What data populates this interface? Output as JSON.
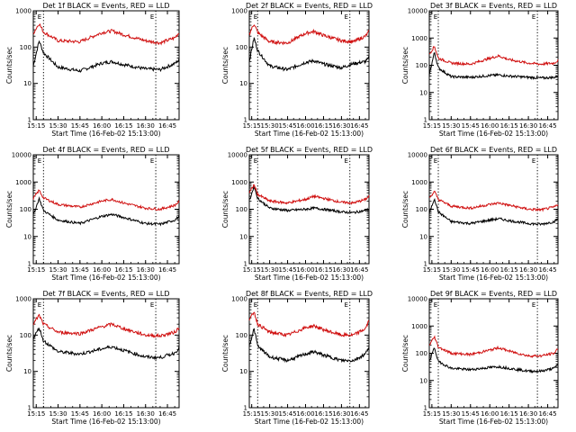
{
  "figure": {
    "start_time_label": "Start Time (16-Feb-02 15:13:00)",
    "ylabel": "Counts/sec",
    "x_tick_labels": [
      "15:15",
      "15:30",
      "15:45",
      "16:00",
      "16:15",
      "16:30",
      "16:45"
    ],
    "y_tick_labels": [
      "1",
      "10",
      "100",
      "1000",
      "10000"
    ]
  },
  "chart_data": [
    {
      "type": "line",
      "title": "Det 1f BLACK = Events, RED = LLD",
      "xlabel": "Start Time (16-Feb-02 15:13:00)",
      "ylabel": "Counts/sec",
      "xlim": [
        "15:13",
        "16:53"
      ],
      "ylim": [
        1,
        1000
      ],
      "yscale": "log",
      "x_tick_labels": [
        "15:15",
        "15:30",
        "15:45",
        "16:00",
        "16:15",
        "16:30",
        "16:45"
      ],
      "y_tick_labels": [
        "1",
        "10",
        "100",
        "1000"
      ],
      "dotted_vlines": [
        "15:20",
        "16:37"
      ],
      "marker_labels": [
        "E",
        "E"
      ],
      "x": [
        "15:13",
        "15:17",
        "15:20",
        "15:30",
        "15:45",
        "16:00",
        "16:07",
        "16:15",
        "16:30",
        "16:40",
        "16:50",
        "16:53"
      ],
      "series": [
        {
          "color": "#000000",
          "values": [
            30,
            150,
            70,
            28,
            22,
            36,
            40,
            33,
            25,
            24,
            35,
            45
          ]
        },
        {
          "color": "#d01010",
          "values": [
            240,
            450,
            260,
            150,
            140,
            250,
            280,
            220,
            150,
            130,
            180,
            250
          ]
        }
      ]
    },
    {
      "type": "line",
      "title": "Det 2f BLACK = Events, RED = LLD",
      "xlabel": "Start Time (16-Feb-02 15:13:00)",
      "ylabel": "Counts/sec",
      "xlim": [
        "15:13",
        "16:53"
      ],
      "ylim": [
        1,
        1000
      ],
      "yscale": "log",
      "x_tick_labels": [
        "15:15",
        "15:30",
        "15:45",
        "16:00",
        "16:15",
        "16:30",
        "16:45"
      ],
      "y_tick_labels": [
        "1",
        "10",
        "100",
        "1000"
      ],
      "dotted_vlines": [
        "15:20",
        "16:37"
      ],
      "marker_labels": [
        "E",
        "E"
      ],
      "x": [
        "15:13",
        "15:17",
        "15:20",
        "15:30",
        "15:45",
        "16:00",
        "16:07",
        "16:15",
        "16:30",
        "16:40",
        "16:50",
        "16:53"
      ],
      "series": [
        {
          "color": "#000000",
          "values": [
            40,
            180,
            80,
            30,
            24,
            38,
            42,
            34,
            27,
            35,
            40,
            50
          ]
        },
        {
          "color": "#d01010",
          "values": [
            230,
            440,
            250,
            140,
            130,
            240,
            270,
            210,
            150,
            140,
            200,
            270
          ]
        }
      ]
    },
    {
      "type": "line",
      "title": "Det 3f BLACK = Events, RED = LLD",
      "xlabel": "Start Time (16-Feb-02 15:13:00)",
      "ylabel": "Counts/sec",
      "xlim": [
        "15:13",
        "16:53"
      ],
      "ylim": [
        1,
        10000
      ],
      "yscale": "log",
      "x_tick_labels": [
        "15:15",
        "15:30",
        "15:45",
        "16:00",
        "16:15",
        "16:30",
        "16:45"
      ],
      "y_tick_labels": [
        "1",
        "10",
        "100",
        "1000",
        "10000"
      ],
      "dotted_vlines": [
        "15:20",
        "16:37"
      ],
      "marker_labels": [
        "E",
        "E"
      ],
      "x": [
        "15:13",
        "15:17",
        "15:20",
        "15:30",
        "15:45",
        "16:00",
        "16:07",
        "16:15",
        "16:30",
        "16:40",
        "16:50",
        "16:53"
      ],
      "series": [
        {
          "color": "#000000",
          "values": [
            45,
            300,
            80,
            38,
            36,
            42,
            44,
            40,
            36,
            34,
            36,
            40
          ]
        },
        {
          "color": "#d01010",
          "values": [
            250,
            500,
            180,
            120,
            110,
            180,
            220,
            160,
            120,
            110,
            120,
            150
          ]
        }
      ]
    },
    {
      "type": "line",
      "title": "Det 4f BLACK = Events, RED = LLD",
      "xlabel": "Start Time (16-Feb-02 15:13:00)",
      "ylabel": "Counts/sec",
      "xlim": [
        "15:13",
        "16:53"
      ],
      "ylim": [
        1,
        10000
      ],
      "yscale": "log",
      "x_tick_labels": [
        "15:15",
        "15:30",
        "15:45",
        "16:00",
        "16:15",
        "16:30",
        "16:45"
      ],
      "y_tick_labels": [
        "1",
        "10",
        "100",
        "1000",
        "10000"
      ],
      "dotted_vlines": [
        "15:20",
        "16:37"
      ],
      "marker_labels": [
        "E",
        "E"
      ],
      "x": [
        "15:13",
        "15:17",
        "15:20",
        "15:30",
        "15:45",
        "16:00",
        "16:07",
        "16:15",
        "16:30",
        "16:40",
        "16:50",
        "16:53"
      ],
      "series": [
        {
          "color": "#000000",
          "values": [
            60,
            250,
            90,
            40,
            30,
            55,
            65,
            50,
            30,
            28,
            40,
            55
          ]
        },
        {
          "color": "#d01010",
          "values": [
            250,
            500,
            260,
            150,
            120,
            200,
            230,
            170,
            110,
            100,
            140,
            190
          ]
        }
      ]
    },
    {
      "type": "line",
      "title": "Det 5f BLACK = Events, RED = LLD",
      "xlabel": "Start Time (16-Feb-02 15:13:00)",
      "ylabel": "Counts/sec",
      "xlim": [
        "15:13",
        "16:53"
      ],
      "ylim": [
        1,
        10000
      ],
      "yscale": "log",
      "x_tick_labels": [
        "15:15",
        "15:30",
        "15:45",
        "16:00",
        "16:15",
        "16:30",
        "16:45"
      ],
      "y_tick_labels": [
        "1",
        "10",
        "100",
        "1000",
        "10000"
      ],
      "dotted_vlines": [
        "15:20",
        "16:37"
      ],
      "marker_labels": [
        "E",
        "E"
      ],
      "x": [
        "15:13",
        "15:17",
        "15:20",
        "15:30",
        "15:45",
        "16:00",
        "16:07",
        "16:15",
        "16:30",
        "16:40",
        "16:50",
        "16:53"
      ],
      "series": [
        {
          "color": "#000000",
          "values": [
            200,
            700,
            250,
            110,
            90,
            100,
            110,
            100,
            80,
            75,
            90,
            100
          ]
        },
        {
          "color": "#d01010",
          "values": [
            400,
            800,
            350,
            200,
            170,
            230,
            300,
            250,
            180,
            170,
            230,
            300
          ]
        }
      ]
    },
    {
      "type": "line",
      "title": "Det 6f BLACK = Events, RED = LLD",
      "xlabel": "Start Time (16-Feb-02 15:13:00)",
      "ylabel": "Counts/sec",
      "xlim": [
        "15:13",
        "16:53"
      ],
      "ylim": [
        1,
        10000
      ],
      "yscale": "log",
      "x_tick_labels": [
        "15:15",
        "15:30",
        "15:45",
        "16:00",
        "16:15",
        "16:30",
        "16:45"
      ],
      "y_tick_labels": [
        "1",
        "10",
        "100",
        "1000",
        "10000"
      ],
      "dotted_vlines": [
        "15:20",
        "16:37"
      ],
      "marker_labels": [
        "E",
        "E"
      ],
      "x": [
        "15:13",
        "15:17",
        "15:20",
        "15:30",
        "15:45",
        "16:00",
        "16:07",
        "16:15",
        "16:30",
        "16:40",
        "16:50",
        "16:53"
      ],
      "series": [
        {
          "color": "#000000",
          "values": [
            70,
            250,
            80,
            35,
            30,
            40,
            45,
            38,
            30,
            28,
            35,
            45
          ]
        },
        {
          "color": "#d01010",
          "values": [
            260,
            450,
            230,
            130,
            110,
            150,
            170,
            140,
            100,
            95,
            120,
            150
          ]
        }
      ]
    },
    {
      "type": "line",
      "title": "Det 7f BLACK = Events, RED = LLD",
      "xlabel": "Start Time (16-Feb-02 15:13:00)",
      "ylabel": "Counts/sec",
      "xlim": [
        "15:13",
        "16:53"
      ],
      "ylim": [
        1,
        1000
      ],
      "yscale": "log",
      "x_tick_labels": [
        "15:15",
        "15:30",
        "15:45",
        "16:00",
        "16:15",
        "16:30",
        "16:45"
      ],
      "y_tick_labels": [
        "1",
        "10",
        "100",
        "1000"
      ],
      "dotted_vlines": [
        "15:20",
        "16:37"
      ],
      "marker_labels": [
        "E",
        "E"
      ],
      "x": [
        "15:13",
        "15:17",
        "15:20",
        "15:30",
        "15:45",
        "16:00",
        "16:07",
        "16:15",
        "16:30",
        "16:40",
        "16:50",
        "16:53"
      ],
      "series": [
        {
          "color": "#000000",
          "values": [
            80,
            160,
            70,
            35,
            30,
            42,
            48,
            38,
            25,
            24,
            32,
            45
          ]
        },
        {
          "color": "#d01010",
          "values": [
            200,
            350,
            200,
            120,
            110,
            170,
            200,
            150,
            100,
            95,
            120,
            160
          ]
        }
      ]
    },
    {
      "type": "line",
      "title": "Det 8f BLACK = Events, RED = LLD",
      "xlabel": "Start Time (16-Feb-02 15:13:00)",
      "ylabel": "Counts/sec",
      "xlim": [
        "15:13",
        "16:53"
      ],
      "ylim": [
        1,
        1000
      ],
      "yscale": "log",
      "x_tick_labels": [
        "15:15",
        "15:30",
        "15:45",
        "16:00",
        "16:15",
        "16:30",
        "16:45"
      ],
      "y_tick_labels": [
        "1",
        "10",
        "100",
        "1000"
      ],
      "dotted_vlines": [
        "15:20",
        "16:37"
      ],
      "marker_labels": [
        "E",
        "E"
      ],
      "x": [
        "15:13",
        "15:17",
        "15:20",
        "15:30",
        "15:45",
        "16:00",
        "16:07",
        "16:15",
        "16:30",
        "16:40",
        "16:50",
        "16:53"
      ],
      "series": [
        {
          "color": "#000000",
          "values": [
            50,
            150,
            50,
            25,
            20,
            30,
            35,
            28,
            20,
            20,
            30,
            50
          ]
        },
        {
          "color": "#d01010",
          "values": [
            250,
            450,
            200,
            120,
            100,
            160,
            180,
            140,
            100,
            100,
            150,
            250
          ]
        }
      ]
    },
    {
      "type": "line",
      "title": "Det 9f BLACK = Events, RED = LLD",
      "xlabel": "Start Time (16-Feb-02 15:13:00)",
      "ylabel": "Counts/sec",
      "xlim": [
        "15:13",
        "16:53"
      ],
      "ylim": [
        1,
        10000
      ],
      "yscale": "log",
      "x_tick_labels": [
        "15:15",
        "15:30",
        "15:45",
        "16:00",
        "16:15",
        "16:30",
        "16:45"
      ],
      "y_tick_labels": [
        "1",
        "10",
        "100",
        "1000",
        "10000"
      ],
      "dotted_vlines": [
        "15:20",
        "16:37"
      ],
      "marker_labels": [
        "E",
        "E"
      ],
      "x": [
        "15:13",
        "15:17",
        "15:20",
        "15:30",
        "15:45",
        "16:00",
        "16:07",
        "16:15",
        "16:30",
        "16:40",
        "16:50",
        "16:53"
      ],
      "series": [
        {
          "color": "#000000",
          "values": [
            50,
            160,
            50,
            28,
            25,
            30,
            32,
            28,
            22,
            22,
            28,
            40
          ]
        },
        {
          "color": "#d01010",
          "values": [
            200,
            400,
            170,
            100,
            90,
            130,
            160,
            120,
            80,
            80,
            100,
            150
          ]
        }
      ]
    }
  ]
}
